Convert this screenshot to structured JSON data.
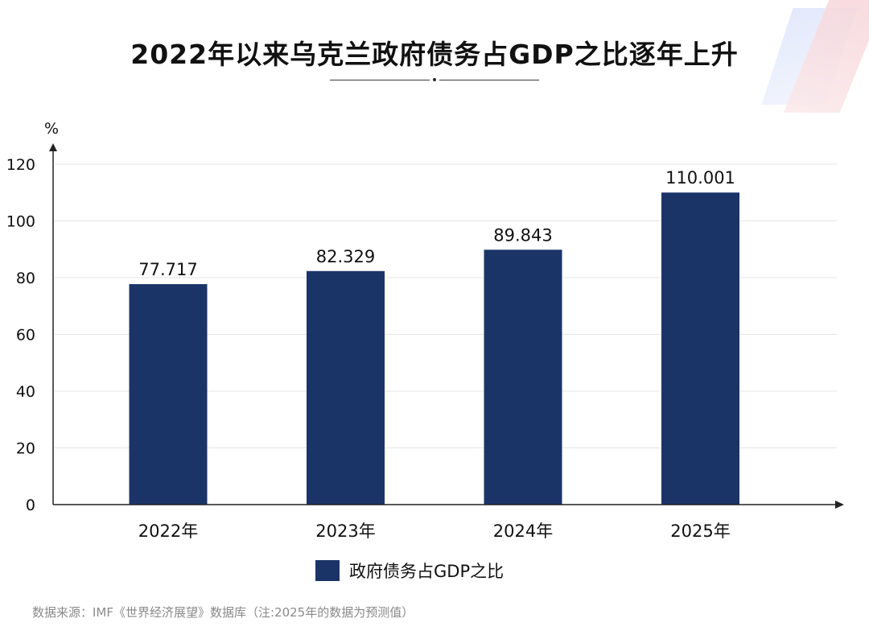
{
  "title": "2022年以来乌克兰政府债务占GDP之比逐年上升",
  "colors": {
    "bar": "#1b3468",
    "axis": "#222222",
    "grid": "#e6e6e6",
    "text": "#111111",
    "source_text": "#8a8a8a"
  },
  "legend": {
    "label": "政府债务占GDP之比"
  },
  "source_note": "数据来源：IMF《世界经济展望》数据库（注:2025年的数据为预测值）",
  "chart_data": {
    "type": "bar",
    "title": "2022年以来乌克兰政府债务占GDP之比逐年上升",
    "xlabel": "",
    "ylabel": "%",
    "categories": [
      "2022年",
      "2023年",
      "2024年",
      "2025年"
    ],
    "series": [
      {
        "name": "政府债务占GDP之比",
        "values": [
          77.717,
          82.329,
          89.843,
          110.001
        ],
        "labels": [
          "77.717",
          "82.329",
          "89.843",
          "110.001"
        ]
      }
    ],
    "ylim": [
      0,
      120
    ],
    "yticks": [
      "0",
      "20",
      "40",
      "60",
      "80",
      "100",
      "120"
    ],
    "grid": true,
    "legend_position": "bottom-center"
  }
}
